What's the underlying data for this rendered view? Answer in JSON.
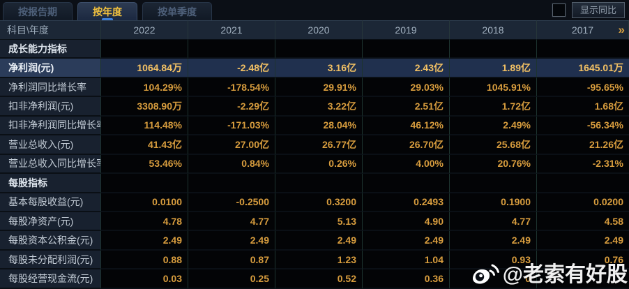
{
  "tabs": [
    {
      "label": "按报告期",
      "active": false
    },
    {
      "label": "按年度",
      "active": true
    },
    {
      "label": "按单季度",
      "active": false
    }
  ],
  "controls": {
    "compare_checkbox_checked": false,
    "compare_button_label": "显示同比"
  },
  "table": {
    "corner_header": "科目\\年度",
    "years": [
      "2022",
      "2021",
      "2020",
      "2019",
      "2018",
      "2017"
    ],
    "more_icon": "»",
    "rows": [
      {
        "label": "成长能力指标",
        "type": "section",
        "values": [
          "",
          "",
          "",
          "",
          "",
          ""
        ]
      },
      {
        "label": "净利润(元)",
        "type": "highlight",
        "values": [
          "1064.84万",
          "-2.48亿",
          "3.16亿",
          "2.43亿",
          "1.89亿",
          "1645.01万"
        ]
      },
      {
        "label": "净利润同比增长率",
        "type": "",
        "values": [
          "104.29%",
          "-178.54%",
          "29.91%",
          "29.03%",
          "1045.91%",
          "-95.65%"
        ]
      },
      {
        "label": "扣非净利润(元)",
        "type": "",
        "values": [
          "3308.90万",
          "-2.29亿",
          "3.22亿",
          "2.51亿",
          "1.72亿",
          "1.68亿"
        ]
      },
      {
        "label": "扣非净利润同比增长率",
        "type": "",
        "values": [
          "114.48%",
          "-171.03%",
          "28.04%",
          "46.12%",
          "2.49%",
          "-56.34%"
        ]
      },
      {
        "label": "营业总收入(元)",
        "type": "",
        "values": [
          "41.43亿",
          "27.00亿",
          "26.77亿",
          "26.70亿",
          "25.68亿",
          "21.26亿"
        ]
      },
      {
        "label": "营业总收入同比增长率",
        "type": "",
        "values": [
          "53.46%",
          "0.84%",
          "0.26%",
          "4.00%",
          "20.76%",
          "-2.31%"
        ]
      },
      {
        "label": "每股指标",
        "type": "section",
        "values": [
          "",
          "",
          "",
          "",
          "",
          ""
        ]
      },
      {
        "label": "基本每股收益(元)",
        "type": "",
        "values": [
          "0.0100",
          "-0.2500",
          "0.3200",
          "0.2493",
          "0.1900",
          "0.0200"
        ]
      },
      {
        "label": "每股净资产(元)",
        "type": "",
        "values": [
          "4.78",
          "4.77",
          "5.13",
          "4.90",
          "4.77",
          "4.58"
        ]
      },
      {
        "label": "每股资本公积金(元)",
        "type": "",
        "values": [
          "2.49",
          "2.49",
          "2.49",
          "2.49",
          "2.49",
          "2.49"
        ]
      },
      {
        "label": "每股未分配利润(元)",
        "type": "",
        "values": [
          "0.88",
          "0.87",
          "1.23",
          "1.04",
          "0.93",
          "0.76"
        ]
      },
      {
        "label": "每股经营现金流(元)",
        "type": "",
        "values": [
          "0.03",
          "0.25",
          "0.52",
          "0.36",
          "0",
          ""
        ]
      }
    ]
  },
  "watermark": {
    "text": "@老索有好股",
    "icon": "weibo-icon"
  },
  "colors": {
    "value_gold": "#d89d3e",
    "highlight_gold": "#f3c164",
    "tab_active_text": "#f2c13e",
    "highlight_row_bg": "#20304e",
    "label_cell_bg": "#18212f",
    "header_row_bg": "#1c2736",
    "data_cell_bg": "#030406",
    "tab_indicator_blue": "#3f7fd6"
  }
}
